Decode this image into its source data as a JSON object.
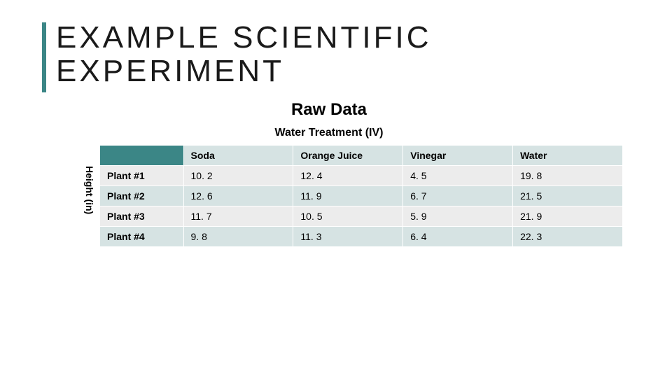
{
  "slide": {
    "title": "EXAMPLE SCIENTIFIC EXPERIMENT",
    "subtitle": "Raw Data",
    "subheading": "Water Treatment (IV)",
    "y_axis_label": "Height (in)"
  },
  "table": {
    "columns": [
      "Soda",
      "Orange Juice",
      "Vinegar",
      "Water"
    ],
    "rows": [
      {
        "label": "Plant #1",
        "values": [
          "10. 2",
          "12. 4",
          "4. 5",
          "19. 8"
        ]
      },
      {
        "label": "Plant #2",
        "values": [
          "12. 6",
          "11. 9",
          "6. 7",
          "21. 5"
        ]
      },
      {
        "label": "Plant #3",
        "values": [
          "11. 7",
          "10. 5",
          "5. 9",
          "21. 9"
        ]
      },
      {
        "label": "Plant #4",
        "values": [
          "9. 8",
          "11. 3",
          "6. 4",
          "22. 3"
        ]
      }
    ],
    "header_empty_bg": "#3b8686",
    "header_col_bg": "#d6e3e3",
    "row_odd_bg": "#ececec",
    "row_even_bg": "#d6e3e3",
    "accent_color": "#3b8686"
  }
}
